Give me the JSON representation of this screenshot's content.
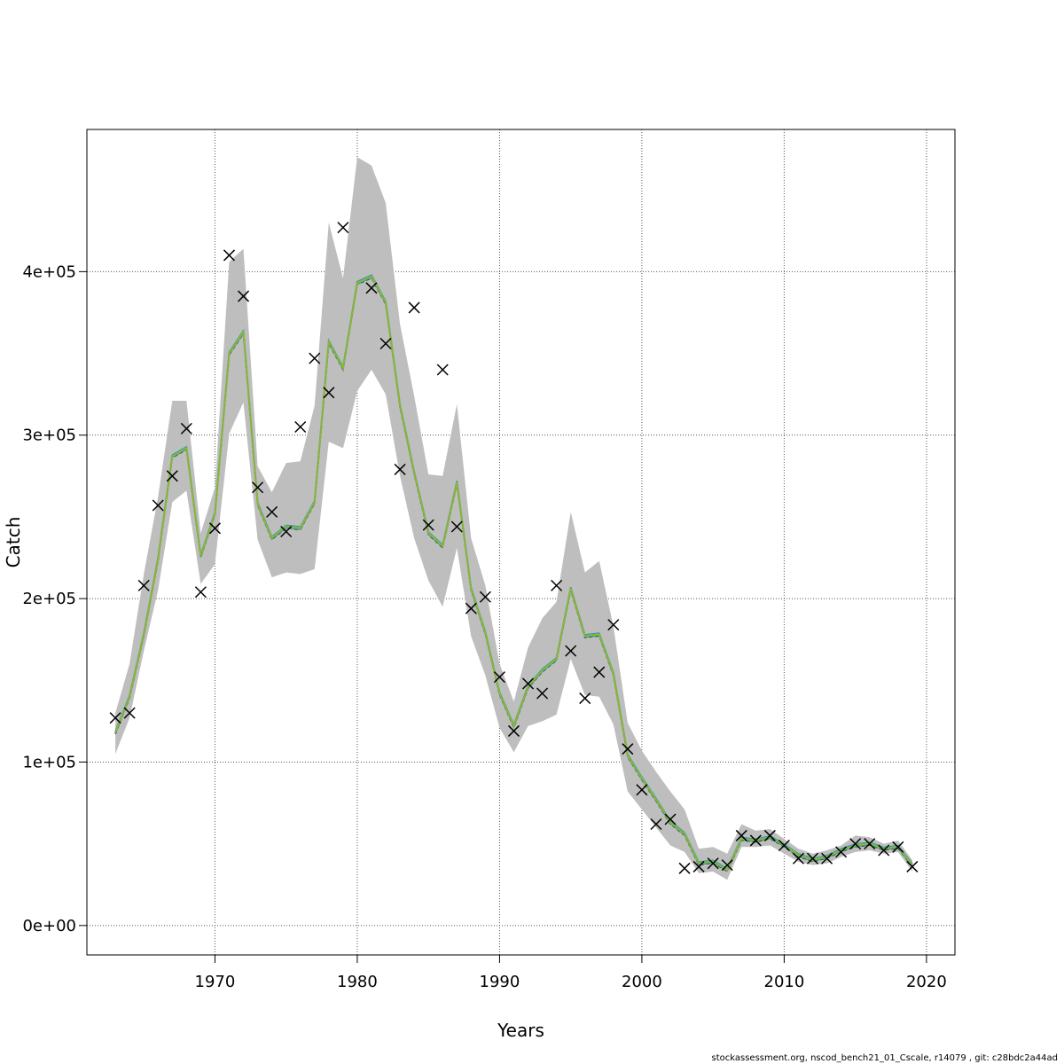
{
  "chart_data": {
    "type": "line",
    "title": "",
    "xlabel": "Years",
    "ylabel": "Catch",
    "xlim": [
      1961,
      2022
    ],
    "ylim": [
      -18000,
      487000
    ],
    "x_ticks": [
      1970,
      1980,
      1990,
      2000,
      2010,
      2020
    ],
    "x_tick_labels": [
      "1970",
      "1980",
      "1990",
      "2000",
      "2010",
      "2020"
    ],
    "y_ticks": [
      0,
      100000,
      200000,
      300000,
      400000
    ],
    "y_tick_labels": [
      "0e+00",
      "1e+05",
      "2e+05",
      "3e+05",
      "4e+05"
    ],
    "grid": true,
    "colors": {
      "band": "#bebebe",
      "fit_main": "#8db33a",
      "fit_alt1": "#1f8f8a",
      "fit_alt2": "#35b7a0",
      "fit_alt3": "#2b3d8f",
      "fit_alt4": "#5a2a7a",
      "observed": "#000000"
    },
    "years": [
      1963,
      1964,
      1965,
      1966,
      1967,
      1968,
      1969,
      1970,
      1971,
      1972,
      1973,
      1974,
      1975,
      1976,
      1977,
      1978,
      1979,
      1980,
      1981,
      1982,
      1983,
      1984,
      1985,
      1986,
      1987,
      1988,
      1989,
      1990,
      1991,
      1992,
      1993,
      1994,
      1995,
      1996,
      1997,
      1998,
      1999,
      2000,
      2001,
      2002,
      2003,
      2004,
      2005,
      2006,
      2007,
      2008,
      2009,
      2010,
      2011,
      2012,
      2013,
      2014,
      2015,
      2016,
      2017,
      2018,
      2019
    ],
    "fitted": [
      118000,
      140000,
      178000,
      224000,
      287000,
      292000,
      226000,
      252000,
      350000,
      363000,
      258000,
      237000,
      244000,
      243000,
      259000,
      357000,
      341000,
      393000,
      397000,
      381000,
      318000,
      277000,
      240000,
      232000,
      271000,
      206000,
      179000,
      142000,
      122000,
      146000,
      156000,
      163000,
      206000,
      177000,
      178000,
      154000,
      104000,
      90000,
      77000,
      63000,
      56000,
      38000,
      39000,
      34000,
      53000,
      52000,
      54000,
      49000,
      43000,
      40000,
      42000,
      46000,
      49000,
      50000,
      47000,
      48000,
      37000
    ],
    "upper": [
      130000,
      160000,
      215000,
      262000,
      321000,
      321000,
      240000,
      268000,
      406000,
      414000,
      281000,
      265000,
      283000,
      284000,
      318000,
      430000,
      396000,
      470000,
      465000,
      442000,
      368000,
      324000,
      276000,
      275000,
      319000,
      237000,
      208000,
      160000,
      137000,
      170000,
      188000,
      198000,
      253000,
      216000,
      223000,
      183000,
      124000,
      107000,
      94000,
      82000,
      71000,
      47000,
      48000,
      44000,
      62000,
      58000,
      59000,
      53000,
      47000,
      44000,
      46000,
      49000,
      55000,
      54000,
      50000,
      52000,
      40000
    ],
    "lower": [
      105000,
      127000,
      168000,
      205000,
      259000,
      266000,
      209000,
      221000,
      301000,
      320000,
      236000,
      213000,
      216000,
      215000,
      218000,
      296000,
      292000,
      327000,
      340000,
      325000,
      275000,
      237000,
      211000,
      195000,
      231000,
      177000,
      153000,
      121000,
      106000,
      122000,
      125000,
      129000,
      163000,
      141000,
      140000,
      123000,
      82000,
      71000,
      60000,
      49000,
      45000,
      32000,
      33000,
      28000,
      48000,
      48000,
      49000,
      44000,
      39000,
      37000,
      38000,
      42000,
      45000,
      46000,
      44000,
      45000,
      33000
    ],
    "observed": [
      127000,
      130000,
      208000,
      257000,
      275000,
      304000,
      204000,
      243000,
      410000,
      385000,
      268000,
      253000,
      241000,
      305000,
      347000,
      326000,
      427000,
      null,
      390000,
      356000,
      279000,
      378000,
      245000,
      340000,
      244000,
      194000,
      201000,
      152000,
      119000,
      148000,
      142000,
      208000,
      168000,
      139000,
      155000,
      184000,
      108000,
      83000,
      62000,
      65000,
      35000,
      36000,
      38000,
      37000,
      55000,
      52000,
      55000,
      49000,
      41000,
      41000,
      41000,
      45000,
      50000,
      50000,
      46000,
      48000,
      36000
    ]
  },
  "footer_text": "stockassessment.org, nscod_bench21_01_Cscale, r14079 , git: c28bdc2a44ad"
}
